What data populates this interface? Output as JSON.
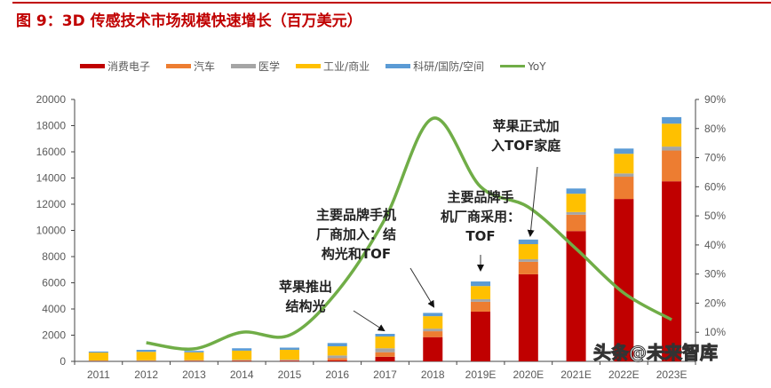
{
  "title": "图 9：3D 传感技术市场规模快速增长（百万美元）",
  "watermark": "头条@未来智库",
  "chart_data": {
    "type": "bar",
    "stacked": true,
    "title": "图 9：3D 传感技术市场规模快速增长（百万美元）",
    "categories": [
      "2011",
      "2012",
      "2013",
      "2014",
      "2015",
      "2016",
      "2017",
      "2018",
      "2019E",
      "2020E",
      "2021E",
      "2022E",
      "2023E"
    ],
    "series": [
      {
        "name": "消费电子",
        "color": "#c00000",
        "values": [
          20,
          20,
          30,
          40,
          50,
          80,
          350,
          1850,
          3800,
          6650,
          9950,
          12400,
          13750
        ]
      },
      {
        "name": "汽车",
        "color": "#ed7d31",
        "values": [
          20,
          20,
          20,
          30,
          30,
          170,
          350,
          450,
          750,
          950,
          1250,
          1700,
          2350
        ]
      },
      {
        "name": "医学",
        "color": "#a5a5a5",
        "values": [
          30,
          40,
          40,
          50,
          50,
          200,
          300,
          200,
          200,
          200,
          200,
          250,
          300
        ]
      },
      {
        "name": "工业/商业",
        "color": "#ffc000",
        "values": [
          600,
          650,
          600,
          700,
          750,
          700,
          900,
          950,
          1000,
          1150,
          1400,
          1500,
          1750
        ]
      },
      {
        "name": "科研/国防/空间",
        "color": "#5b9bd5",
        "values": [
          80,
          150,
          110,
          180,
          170,
          250,
          200,
          250,
          350,
          350,
          400,
          400,
          500
        ]
      }
    ],
    "line_series": {
      "name": "YoY",
      "color": "#70ad47",
      "axis": "right",
      "values": [
        null,
        6.4,
        4.3,
        10,
        9,
        24,
        49,
        83.5,
        60,
        53,
        38.7,
        23.5,
        14.3
      ]
    },
    "ylim": [
      0,
      20000
    ],
    "yticks": [
      "0",
      "2000",
      "4000",
      "6000",
      "8000",
      "10000",
      "12000",
      "14000",
      "16000",
      "18000",
      "20000"
    ],
    "y2lim": [
      0,
      90
    ],
    "y2ticks": [
      "10%",
      "20%",
      "30%",
      "40%",
      "50%",
      "60%",
      "70%",
      "80%",
      "90%"
    ],
    "legend_position": "top",
    "grid": false,
    "annotations": [
      {
        "lines": [
          "苹果推出",
          "结构光"
        ],
        "target": "2017"
      },
      {
        "lines": [
          "主要品牌手机",
          "厂商加入：结",
          "构光和TOF"
        ],
        "target": "2018"
      },
      {
        "lines": [
          "主要品牌手",
          "机厂商采用：",
          "TOF"
        ],
        "target": "2019E"
      },
      {
        "lines": [
          "苹果正式加",
          "入TOF家庭"
        ],
        "target": "2020E"
      }
    ]
  }
}
